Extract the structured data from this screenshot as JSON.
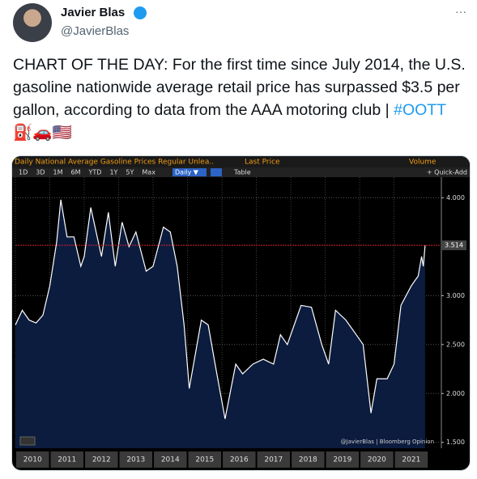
{
  "tweet": {
    "name": "Javier Blas",
    "handle": "@JavierBlas",
    "more": "···",
    "text": "CHART OF THE DAY: For the first time since July 2014, the U.S. gasoline nationwide average retail price has surpassed $3.5 per gallon, according to data from the AAA motoring club | ",
    "hashtag": "#OOTT",
    "emoji": "⛽🚗🇺🇸"
  },
  "chart_data": {
    "type": "area",
    "title": "Daily National Average Gasoline Prices Regular Unlea..",
    "legend_last": "Last Price",
    "legend_volume": "Volume",
    "toolbar": [
      "1D",
      "3D",
      "1M",
      "6M",
      "YTD",
      "1Y",
      "5Y",
      "Max"
    ],
    "period": "Daily ▼",
    "table": "Table",
    "quick_add": "+ Quick-Add",
    "watermark": "@JavierBlas | Bloomberg Opinion",
    "last_value": 3.514,
    "color": "#ffffff",
    "fill": "#0c1c3f",
    "last_color": "#d2232a",
    "grid": true,
    "x": [
      2010.0,
      2010.2,
      2010.4,
      2010.6,
      2010.8,
      2011.0,
      2011.2,
      2011.32,
      2011.5,
      2011.7,
      2011.9,
      2012.0,
      2012.19,
      2012.5,
      2012.7,
      2012.9,
      2013.1,
      2013.3,
      2013.5,
      2013.8,
      2014.0,
      2014.3,
      2014.5,
      2014.7,
      2014.9,
      2015.05,
      2015.4,
      2015.6,
      2015.8,
      2016.09,
      2016.4,
      2016.6,
      2016.9,
      2017.2,
      2017.5,
      2017.7,
      2017.9,
      2018.3,
      2018.6,
      2018.9,
      2019.1,
      2019.3,
      2019.6,
      2019.9,
      2020.1,
      2020.33,
      2020.5,
      2020.8,
      2021.0,
      2021.2,
      2021.5,
      2021.7,
      2021.8,
      2021.85,
      2021.9
    ],
    "series": [
      {
        "name": "Last Price",
        "values": [
          2.7,
          2.85,
          2.75,
          2.72,
          2.8,
          3.1,
          3.55,
          3.98,
          3.6,
          3.6,
          3.3,
          3.4,
          3.9,
          3.4,
          3.85,
          3.3,
          3.75,
          3.5,
          3.65,
          3.25,
          3.3,
          3.7,
          3.65,
          3.3,
          2.7,
          2.05,
          2.75,
          2.7,
          2.3,
          1.74,
          2.3,
          2.2,
          2.3,
          2.35,
          2.3,
          2.6,
          2.5,
          2.9,
          2.88,
          2.5,
          2.3,
          2.85,
          2.75,
          2.6,
          2.5,
          1.8,
          2.15,
          2.15,
          2.3,
          2.9,
          3.1,
          3.2,
          3.4,
          3.3,
          3.514
        ]
      }
    ],
    "xlim": [
      2010,
      2022.35
    ],
    "xticks": [
      {
        "value": 2010.5,
        "label": "2010"
      },
      {
        "value": 2011.5,
        "label": "2011"
      },
      {
        "value": 2012.5,
        "label": "2012"
      },
      {
        "value": 2013.5,
        "label": "2013"
      },
      {
        "value": 2014.5,
        "label": "2014"
      },
      {
        "value": 2015.5,
        "label": "2015"
      },
      {
        "value": 2016.5,
        "label": "2016"
      },
      {
        "value": 2017.5,
        "label": "2017"
      },
      {
        "value": 2018.5,
        "label": "2018"
      },
      {
        "value": 2019.5,
        "label": "2019"
      },
      {
        "value": 2020.5,
        "label": "2020"
      },
      {
        "value": 2021.5,
        "label": "2021"
      }
    ],
    "ylim": [
      1.44,
      4.21
    ],
    "yticks": [
      {
        "value": 1.5,
        "label": "1.500"
      },
      {
        "value": 2,
        "label": "2.000"
      },
      {
        "value": 2.5,
        "label": "2.500"
      },
      {
        "value": 3,
        "label": "3.000"
      },
      {
        "value": 4,
        "label": "4.000"
      }
    ]
  }
}
